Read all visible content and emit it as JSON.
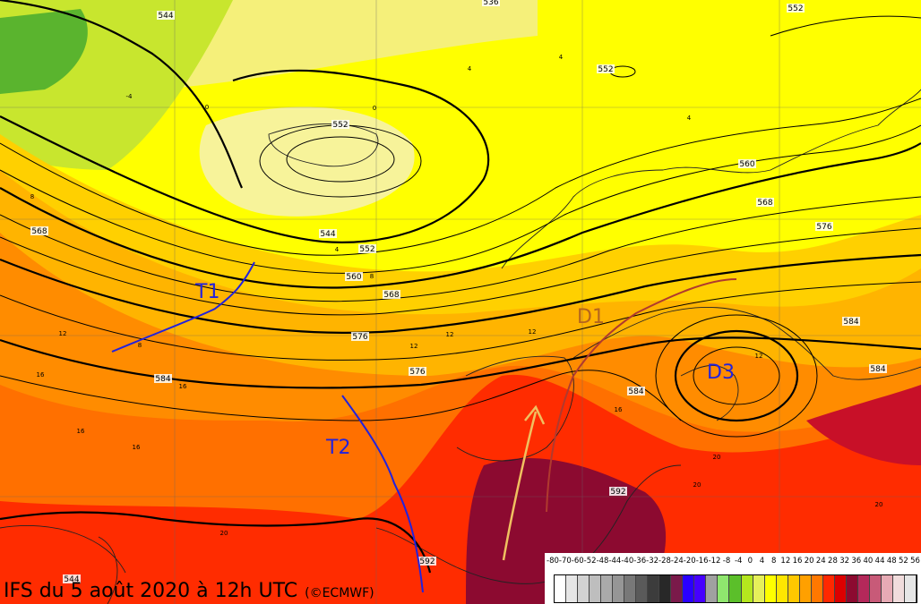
{
  "map": {
    "title": "IFS du 5 août 2020 à 12h UTC",
    "credit": "(©ECMWF)",
    "features": [
      {
        "id": "T1",
        "label": "T1",
        "type": "trough"
      },
      {
        "id": "T2",
        "label": "T2",
        "type": "trough"
      },
      {
        "id": "D1",
        "label": "D1",
        "type": "ridge"
      },
      {
        "id": "D3",
        "label": "D3",
        "type": "low"
      }
    ],
    "colors": {
      "trough": "#2222dd",
      "ridge": "#b03a2e",
      "ridge_label": "#b5651d",
      "flow_arrow": "#f0c060",
      "contour": "#000000"
    },
    "geopotential_labels": [
      "544",
      "552",
      "536",
      "544",
      "552",
      "560",
      "568",
      "576",
      "584",
      "568",
      "576",
      "584",
      "560",
      "568",
      "576",
      "584",
      "584",
      "552",
      "592",
      "592",
      "544",
      "552"
    ],
    "temperature_labels": [
      "-4",
      "0",
      "0",
      "4",
      "4",
      "4",
      "4",
      "8",
      "8",
      "8",
      "12",
      "12",
      "12",
      "12",
      "12",
      "16",
      "16",
      "16",
      "16",
      "16",
      "20",
      "20",
      "20",
      "20"
    ]
  },
  "legend": {
    "labels": [
      "-80",
      "-70",
      "-60",
      "-52",
      "-48",
      "-44",
      "-40",
      "-36",
      "-32",
      "-28",
      "-24",
      "-20",
      "-16",
      "-12",
      "-8",
      "-4",
      "0",
      "4",
      "8",
      "12",
      "16",
      "20",
      "24",
      "28",
      "32",
      "36",
      "40",
      "44",
      "48",
      "52",
      "56"
    ],
    "colors": [
      "#ffffff",
      "#e6e6e6",
      "#d2d2d2",
      "#bebebe",
      "#aaaaaa",
      "#969696",
      "#787878",
      "#5a5a5a",
      "#3c3c3c",
      "#282828",
      "#7a1a4a",
      "#2a00ff",
      "#4600ff",
      "#a0a0a0",
      "#8fe66e",
      "#5bbf2a",
      "#b4e61e",
      "#e6f05a",
      "#ffff00",
      "#ffe600",
      "#ffc800",
      "#ffa000",
      "#ff7800",
      "#ff2800",
      "#dc0000",
      "#8c0a30",
      "#b4285a",
      "#c85a78",
      "#e6aab4",
      "#f0dcdc",
      "#e6e6e6"
    ]
  }
}
